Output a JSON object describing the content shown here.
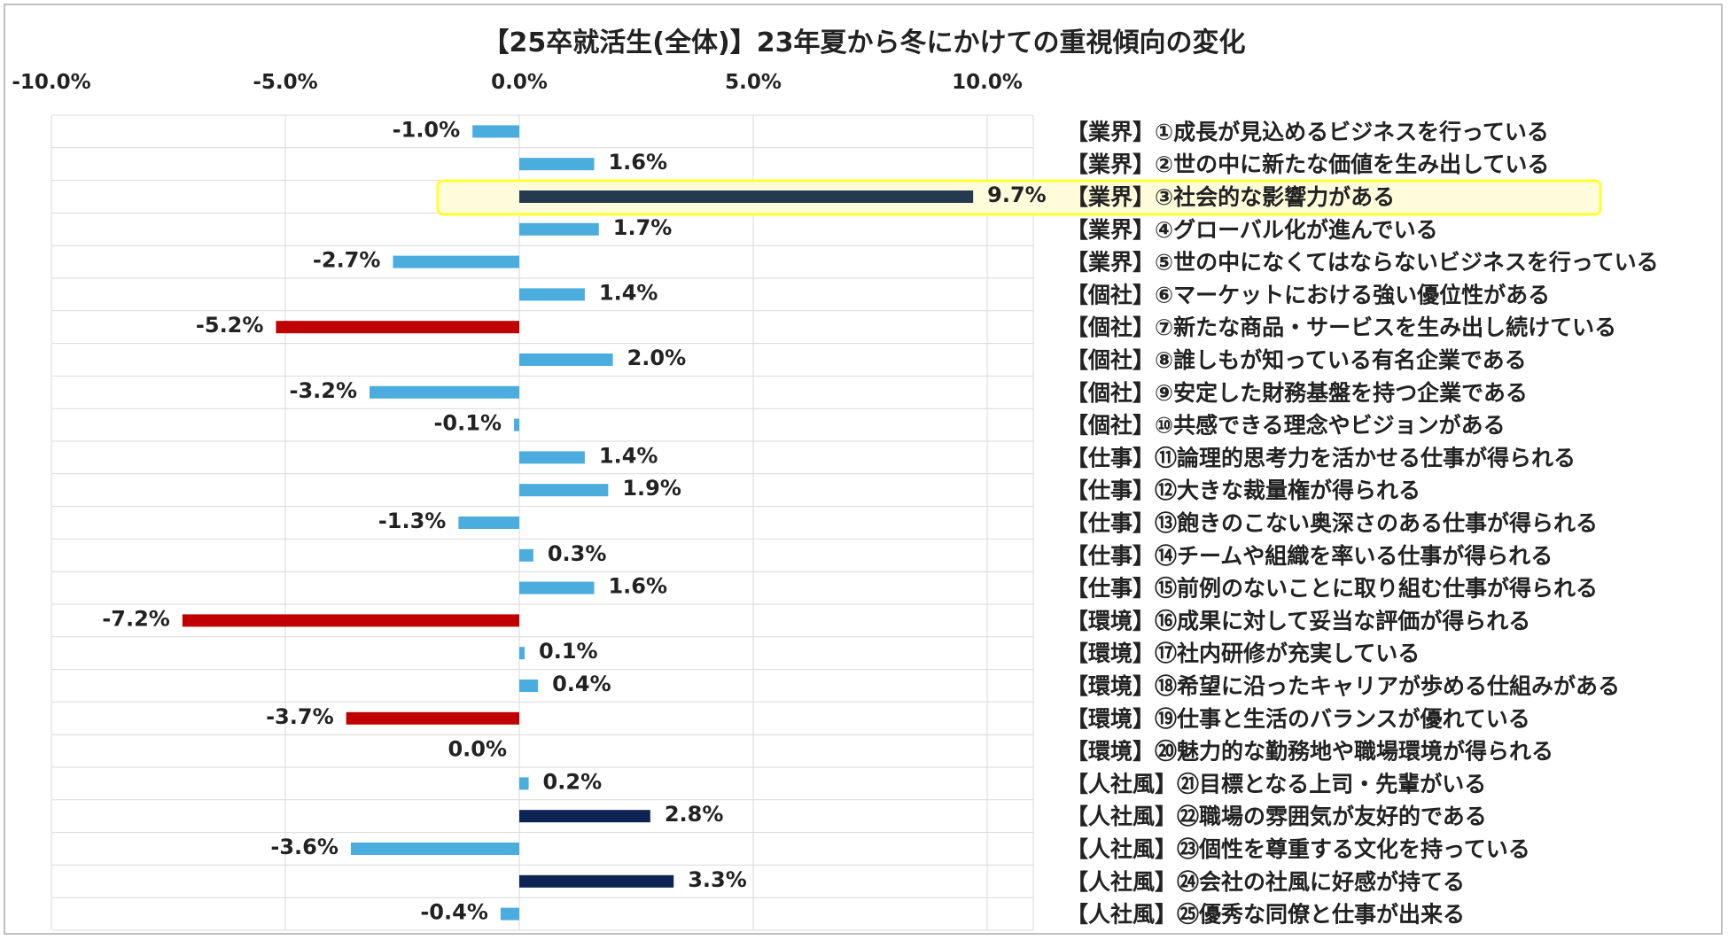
{
  "chart_data": {
    "type": "bar",
    "orientation": "horizontal",
    "title": "【25卒就活生(全体)】23年夏から冬にかけての重視傾向の変化",
    "xlabel": "",
    "ylabel": "",
    "xlim": [
      -10,
      12
    ],
    "x_ticks": [
      -10,
      -5,
      0,
      5,
      10
    ],
    "x_tick_labels": [
      "-10.0%",
      "-5.0%",
      "0.0%",
      "5.0%",
      "10.0%"
    ],
    "grid": "vertical",
    "legend": "none",
    "highlight_index": 2,
    "highlight_color": "#ffff33",
    "categories": [
      "【業界】①成長が見込めるビジネスを行っている",
      "【業界】②世の中に新たな価値を生み出している",
      "【業界】③社会的な影響力がある",
      "【業界】④グローバル化が進んでいる",
      "【業界】⑤世の中になくてはならないビジネスを行っている",
      "【個社】⑥マーケットにおける強い優位性がある",
      "【個社】⑦新たな商品・サービスを生み出し続けている",
      "【個社】⑧誰しもが知っている有名企業である",
      "【個社】⑨安定した財務基盤を持つ企業である",
      "【個社】⑩共感できる理念やビジョンがある",
      "【仕事】⑪論理的思考力を活かせる仕事が得られる",
      "【仕事】⑫大きな裁量権が得られる",
      "【仕事】⑬飽きのこない奥深さのある仕事が得られる",
      "【仕事】⑭チームや組織を率いる仕事が得られる",
      "【仕事】⑮前例のないことに取り組む仕事が得られる",
      "【環境】⑯成果に対して妥当な評価が得られる",
      "【環境】⑰社内研修が充実している",
      "【環境】⑱希望に沿ったキャリアが歩める仕組みがある",
      "【環境】⑲仕事と生活のバランスが優れている",
      "【環境】⑳魅力的な勤務地や職場環境が得られる",
      "【人社風】㉑目標となる上司・先輩がいる",
      "【人社風】㉒職場の雰囲気が友好的である",
      "【人社風】㉓個性を尊重する文化を持っている",
      "【人社風】㉔会社の社風に好感が持てる",
      "【人社風】㉕優秀な同僚と仕事が出来る"
    ],
    "values": [
      -1.0,
      1.6,
      9.7,
      1.7,
      -2.7,
      1.4,
      -5.2,
      2.0,
      -3.2,
      -0.1,
      1.4,
      1.9,
      -1.3,
      0.3,
      1.6,
      -7.2,
      0.1,
      0.4,
      -3.7,
      0.0,
      0.2,
      2.8,
      -3.6,
      3.3,
      -0.4
    ],
    "value_labels": [
      "-1.0%",
      "1.6%",
      "9.7%",
      "1.7%",
      "-2.7%",
      "1.4%",
      "-5.2%",
      "2.0%",
      "-3.2%",
      "-0.1%",
      "1.4%",
      "1.9%",
      "-1.3%",
      "0.3%",
      "1.6%",
      "-7.2%",
      "0.1%",
      "0.4%",
      "-3.7%",
      "0.0%",
      "0.2%",
      "2.8%",
      "-3.6%",
      "3.3%",
      "-0.4%"
    ],
    "colors": [
      "#4bacde",
      "#4bacde",
      "#243a4e",
      "#4bacde",
      "#4bacde",
      "#4bacde",
      "#c00000",
      "#4bacde",
      "#4bacde",
      "#4bacde",
      "#4bacde",
      "#4bacde",
      "#4bacde",
      "#4bacde",
      "#4bacde",
      "#c00000",
      "#4bacde",
      "#4bacde",
      "#c00000",
      "#4bacde",
      "#4bacde",
      "#0e2454",
      "#4bacde",
      "#0e2454",
      "#4bacde"
    ]
  }
}
